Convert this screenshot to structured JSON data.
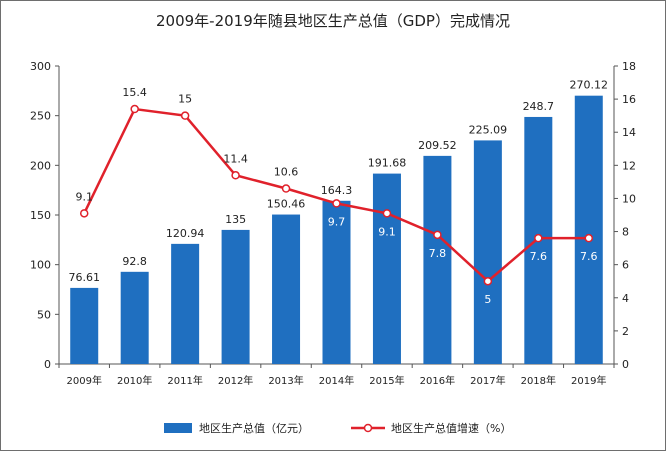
{
  "chart_data": {
    "type": "bar",
    "title": "2009年-2019年随县地区生产总值（GDP）完成情况",
    "categories": [
      "2009年",
      "2010年",
      "2011年",
      "2012年",
      "2013年",
      "2014年",
      "2015年",
      "2016年",
      "2017年",
      "2018年",
      "2019年"
    ],
    "series": [
      {
        "name": "地区生产总值（亿元）",
        "type": "bar",
        "axis": "left",
        "color": "#1f6fc0",
        "values": [
          76.61,
          92.8,
          120.94,
          135,
          150.46,
          164.3,
          191.68,
          209.52,
          225.09,
          248.7,
          270.12
        ],
        "labels": [
          "76.61",
          "92.8",
          "120.94",
          "135",
          "150.46",
          "164.3",
          "191.68",
          "209.52",
          "225.09",
          "248.7",
          "270.12"
        ]
      },
      {
        "name": "地区生产总值增速（%）",
        "type": "line",
        "axis": "right",
        "color": "#e0212b",
        "values": [
          9.1,
          15.4,
          15,
          11.4,
          10.6,
          9.7,
          9.1,
          7.8,
          5,
          7.6,
          7.6
        ],
        "labels": [
          "9.1",
          "15.4",
          "15",
          "11.4",
          "10.6",
          "9.7",
          "9.1",
          "7.8",
          "5",
          "7.6",
          "7.6"
        ]
      }
    ],
    "y_left": {
      "min": 0,
      "max": 300,
      "ticks": [
        0,
        50,
        100,
        150,
        200,
        250,
        300
      ]
    },
    "y_right": {
      "min": 0,
      "max": 18,
      "ticks": [
        0,
        2,
        4,
        6,
        8,
        10,
        12,
        14,
        16,
        18
      ]
    },
    "grid": false,
    "legend_position": "bottom"
  }
}
